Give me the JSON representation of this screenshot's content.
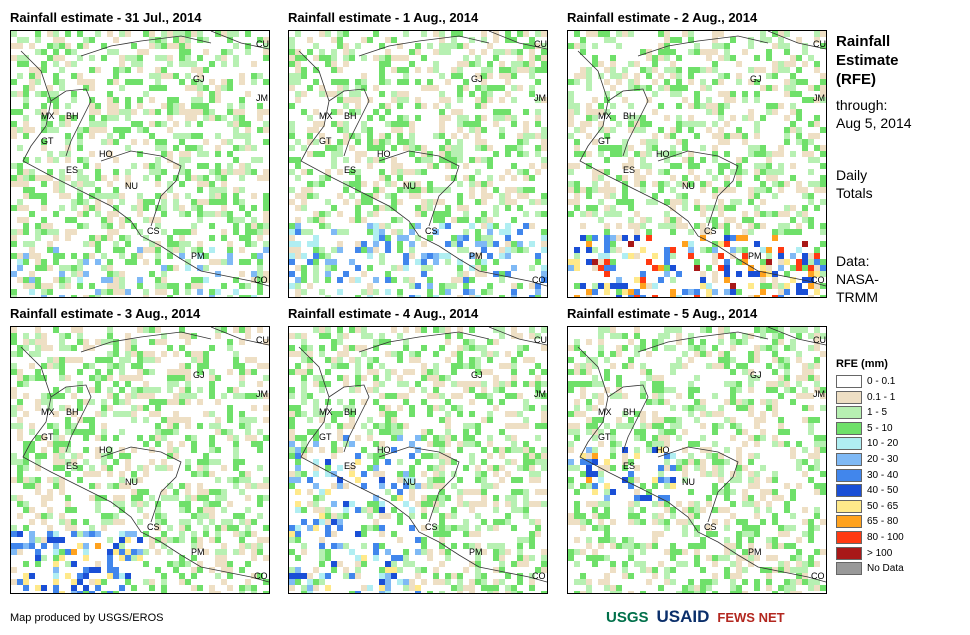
{
  "panels": [
    {
      "title": "Rainfall estimate - 31 Jul., 2014",
      "intensity": "low-south"
    },
    {
      "title": "Rainfall estimate - 1 Aug., 2014",
      "intensity": "moderate-south"
    },
    {
      "title": "Rainfall estimate - 2 Aug., 2014",
      "intensity": "heavy-south"
    },
    {
      "title": "Rainfall estimate - 3 Aug., 2014",
      "intensity": "heavy-southwest"
    },
    {
      "title": "Rainfall estimate - 4 Aug., 2014",
      "intensity": "moderate-central"
    },
    {
      "title": "Rainfall estimate - 5 Aug., 2014",
      "intensity": "moderate-west"
    }
  ],
  "country_labels": {
    "mx": "MX",
    "bh": "BH",
    "gt": "GT",
    "ho": "HO",
    "es": "ES",
    "nu": "NU",
    "cs": "CS",
    "pm": "PM",
    "co": "CO",
    "cu": "CU",
    "gj": "GJ",
    "jm": "JM"
  },
  "side": {
    "title_line1": "Rainfall",
    "title_line2": "Estimate",
    "title_line3": "(RFE)",
    "through_label": "through:",
    "through_date": "Aug 5, 2014",
    "daily_line1": "Daily",
    "daily_line2": "Totals",
    "data_line1": "Data:",
    "data_line2": "NASA-",
    "data_line3": "TRMM"
  },
  "legend": {
    "title": "RFE (mm)",
    "items": [
      {
        "label": "0 - 0.1",
        "color": "#ffffff"
      },
      {
        "label": "0.1 - 1",
        "color": "#eedfc4"
      },
      {
        "label": "1 - 5",
        "color": "#b7f0b2"
      },
      {
        "label": "5 - 10",
        "color": "#6fe06a"
      },
      {
        "label": "10 - 20",
        "color": "#b0eef2"
      },
      {
        "label": "20 - 30",
        "color": "#7fb9f5"
      },
      {
        "label": "30 - 40",
        "color": "#4186ec"
      },
      {
        "label": "40 - 50",
        "color": "#1a4fd6"
      },
      {
        "label": "50 - 65",
        "color": "#ffe98a"
      },
      {
        "label": "65 - 80",
        "color": "#ffa21e"
      },
      {
        "label": "80 - 100",
        "color": "#ff3a12"
      },
      {
        "label": "> 100",
        "color": "#a81818"
      },
      {
        "label": "No Data",
        "color": "#999999"
      }
    ]
  },
  "credit": "Map produced by USGS/EROS",
  "logos": {
    "usgs": "USGS",
    "usaid": "USAID",
    "fewsnet": "FEWS NET"
  }
}
